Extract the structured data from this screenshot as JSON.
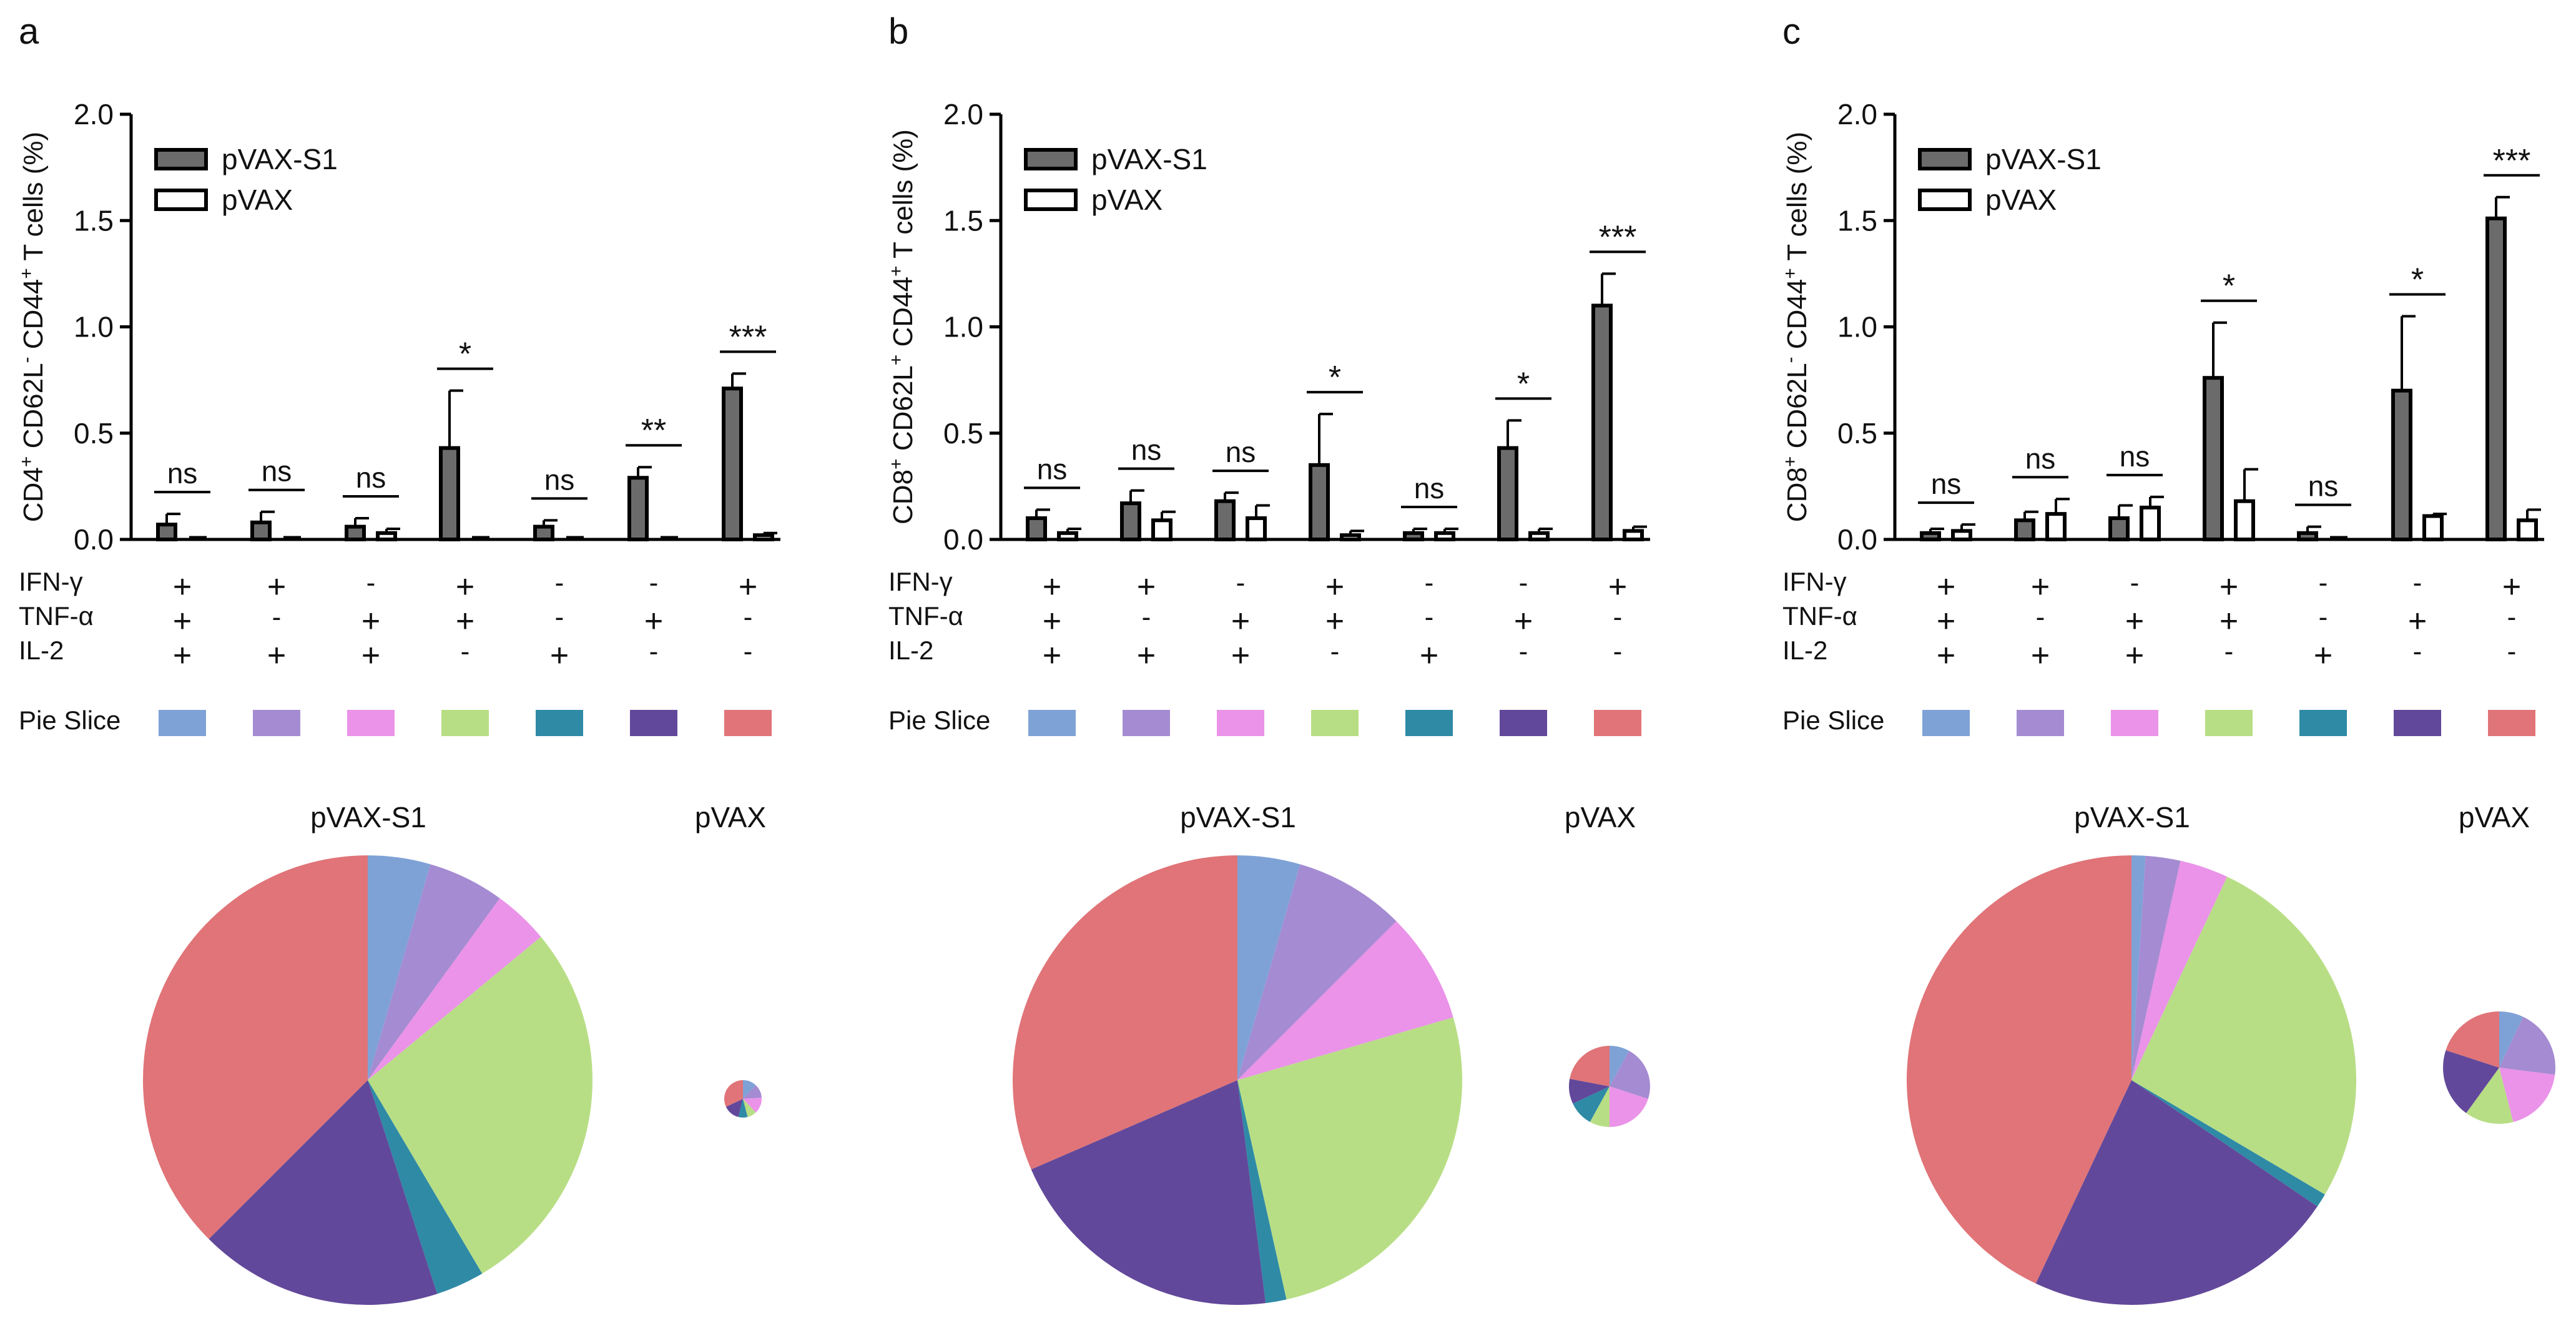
{
  "chart_data": [
    {
      "panel": "a",
      "type": "bar",
      "ylabel_parts": [
        "CD4",
        "+",
        " CD62L",
        "-",
        " CD44",
        "+",
        " T cells (%)"
      ],
      "yticks": [
        "0.0",
        "0.5",
        "1.0",
        "1.5",
        "2.0"
      ],
      "ylim": [
        0,
        2.0
      ],
      "legend": [
        "pVAX-S1",
        "pVAX"
      ],
      "series": [
        {
          "name": "pVAX-S1",
          "values": [
            0.07,
            0.08,
            0.06,
            0.43,
            0.06,
            0.29,
            0.71
          ],
          "errors": [
            0.05,
            0.05,
            0.04,
            0.27,
            0.03,
            0.05,
            0.07
          ]
        },
        {
          "name": "pVAX",
          "values": [
            0.0,
            0.0,
            0.03,
            0.0,
            0.0,
            0.0,
            0.02
          ],
          "errors": [
            0.0,
            0.0,
            0.02,
            0.0,
            0.0,
            0.0,
            0.01
          ]
        }
      ],
      "significance": [
        "ns",
        "ns",
        "ns",
        "*",
        "ns",
        "**",
        "***"
      ],
      "row_labels": [
        "IFN-γ",
        "TNF-α",
        "IL-2"
      ],
      "cytokine_rows": [
        [
          "+",
          "+",
          "-",
          "+",
          "-",
          "-",
          "+"
        ],
        [
          "+",
          "-",
          "+",
          "+",
          "-",
          "+",
          "-"
        ],
        [
          "+",
          "+",
          "+",
          "-",
          "+",
          "-",
          "-"
        ]
      ],
      "pie_slice_label": "Pie Slice",
      "pie_titles": [
        "pVAX-S1",
        "pVAX"
      ],
      "pie_main": [
        4.5,
        5.5,
        4.0,
        27.5,
        3.5,
        17.5,
        37.5
      ],
      "pie_small": [
        12,
        12,
        14,
        8,
        8,
        14,
        32
      ]
    },
    {
      "panel": "b",
      "type": "bar",
      "ylabel_parts": [
        "CD8",
        "+",
        " CD62L",
        "+",
        " CD44",
        "+",
        " T cells (%)"
      ],
      "yticks": [
        "0.0",
        "0.5",
        "1.0",
        "1.5",
        "2.0"
      ],
      "ylim": [
        0,
        2.0
      ],
      "legend": [
        "pVAX-S1",
        "pVAX"
      ],
      "series": [
        {
          "name": "pVAX-S1",
          "values": [
            0.1,
            0.17,
            0.18,
            0.35,
            0.03,
            0.43,
            1.1
          ],
          "errors": [
            0.04,
            0.06,
            0.04,
            0.24,
            0.02,
            0.13,
            0.15
          ]
        },
        {
          "name": "pVAX",
          "values": [
            0.03,
            0.09,
            0.1,
            0.02,
            0.03,
            0.03,
            0.04
          ],
          "errors": [
            0.02,
            0.04,
            0.06,
            0.02,
            0.02,
            0.02,
            0.02
          ]
        }
      ],
      "significance": [
        "ns",
        "ns",
        "ns",
        "*",
        "ns",
        "*",
        "***"
      ],
      "row_labels": [
        "IFN-γ",
        "TNF-α",
        "IL-2"
      ],
      "cytokine_rows": [
        [
          "+",
          "+",
          "-",
          "+",
          "-",
          "-",
          "+"
        ],
        [
          "+",
          "-",
          "+",
          "+",
          "-",
          "+",
          "-"
        ],
        [
          "+",
          "+",
          "+",
          "-",
          "+",
          "-",
          "-"
        ]
      ],
      "pie_slice_label": "Pie Slice",
      "pie_titles": [
        "pVAX-S1",
        "pVAX"
      ],
      "pie_main": [
        4.5,
        8.0,
        8.0,
        26.0,
        1.5,
        20.5,
        31.5
      ],
      "pie_small": [
        8,
        22,
        20,
        8,
        10,
        10,
        22
      ]
    },
    {
      "panel": "c",
      "type": "bar",
      "ylabel_parts": [
        "CD8",
        "+",
        " CD62L",
        "-",
        " CD44",
        "+",
        " T cells (%)"
      ],
      "yticks": [
        "0.0",
        "0.5",
        "1.0",
        "1.5",
        "2.0"
      ],
      "ylim": [
        0,
        2.0
      ],
      "legend": [
        "pVAX-S1",
        "pVAX"
      ],
      "series": [
        {
          "name": "pVAX-S1",
          "values": [
            0.03,
            0.09,
            0.1,
            0.76,
            0.03,
            0.7,
            1.51
          ],
          "errors": [
            0.02,
            0.04,
            0.06,
            0.26,
            0.03,
            0.35,
            0.1
          ]
        },
        {
          "name": "pVAX",
          "values": [
            0.04,
            0.12,
            0.15,
            0.18,
            0.0,
            0.11,
            0.09
          ],
          "errors": [
            0.03,
            0.07,
            0.05,
            0.15,
            0.0,
            0.01,
            0.05
          ]
        }
      ],
      "significance": [
        "ns",
        "ns",
        "ns",
        "*",
        "ns",
        "*",
        "***"
      ],
      "row_labels": [
        "IFN-γ",
        "TNF-α",
        "IL-2"
      ],
      "cytokine_rows": [
        [
          "+",
          "+",
          "-",
          "+",
          "-",
          "-",
          "+"
        ],
        [
          "+",
          "-",
          "+",
          "+",
          "-",
          "+",
          "-"
        ],
        [
          "+",
          "+",
          "+",
          "-",
          "+",
          "-",
          "-"
        ]
      ],
      "pie_slice_label": "Pie Slice",
      "pie_titles": [
        "pVAX-S1",
        "pVAX"
      ],
      "pie_main": [
        1.0,
        2.5,
        3.5,
        26.5,
        1.0,
        22.5,
        43.0
      ],
      "pie_small": [
        7,
        20,
        19,
        14,
        0,
        20,
        20
      ]
    }
  ],
  "slice_colors": [
    "#7fa2d6",
    "#a58bd2",
    "#ea93e8",
    "#b8de85",
    "#2f8aa6",
    "#62489a",
    "#e07478"
  ],
  "bar_colors": {
    "filled": "#6b6b6b",
    "open": "#ffffff",
    "stroke": "#000000"
  }
}
